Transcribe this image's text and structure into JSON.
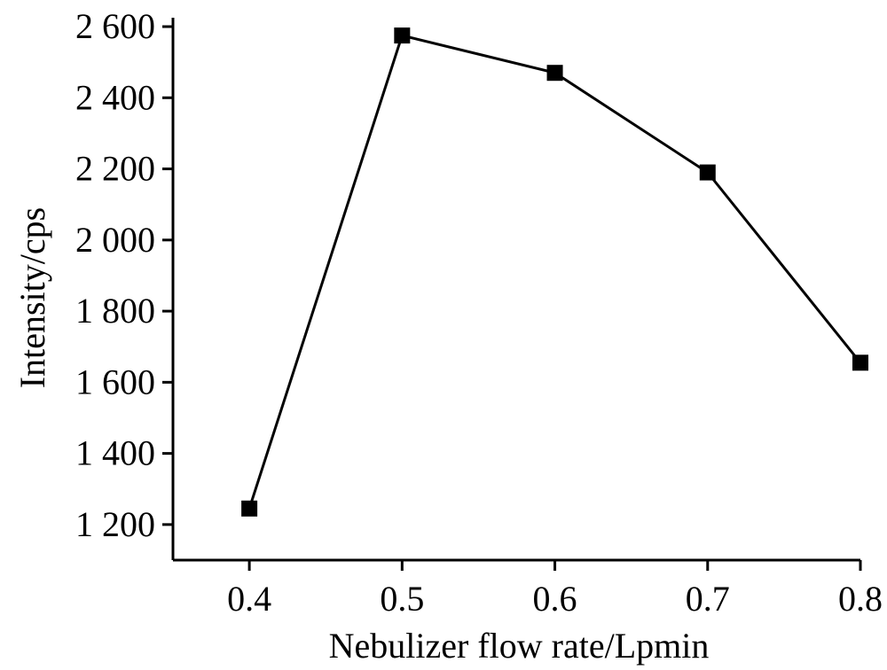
{
  "chart_data": {
    "type": "line",
    "xlabel": "Nebulizer flow rate/Lpmin",
    "ylabel": "Intensity/cps",
    "x": [
      0.4,
      0.5,
      0.6,
      0.7,
      0.8
    ],
    "series": [
      {
        "values": [
          1245,
          2575,
          2470,
          2190,
          1655
        ]
      }
    ],
    "x_ticks": [
      0.4,
      0.5,
      0.6,
      0.7,
      0.8
    ],
    "x_tick_labels": [
      "0.4",
      "0.5",
      "0.6",
      "0.7",
      "0.8"
    ],
    "y_ticks": [
      1200,
      1400,
      1600,
      1800,
      2000,
      2200,
      2400,
      2600
    ],
    "y_tick_labels": [
      "1 200",
      "1 400",
      "1 600",
      "1 800",
      "2 000",
      "2 200",
      "2 400",
      "2 600"
    ],
    "xlim": [
      0.35,
      0.8
    ],
    "ylim": [
      1100,
      2625
    ],
    "grid": false,
    "legend": "none",
    "marker": "square",
    "line_color": "#000000",
    "marker_color": "#000000"
  }
}
